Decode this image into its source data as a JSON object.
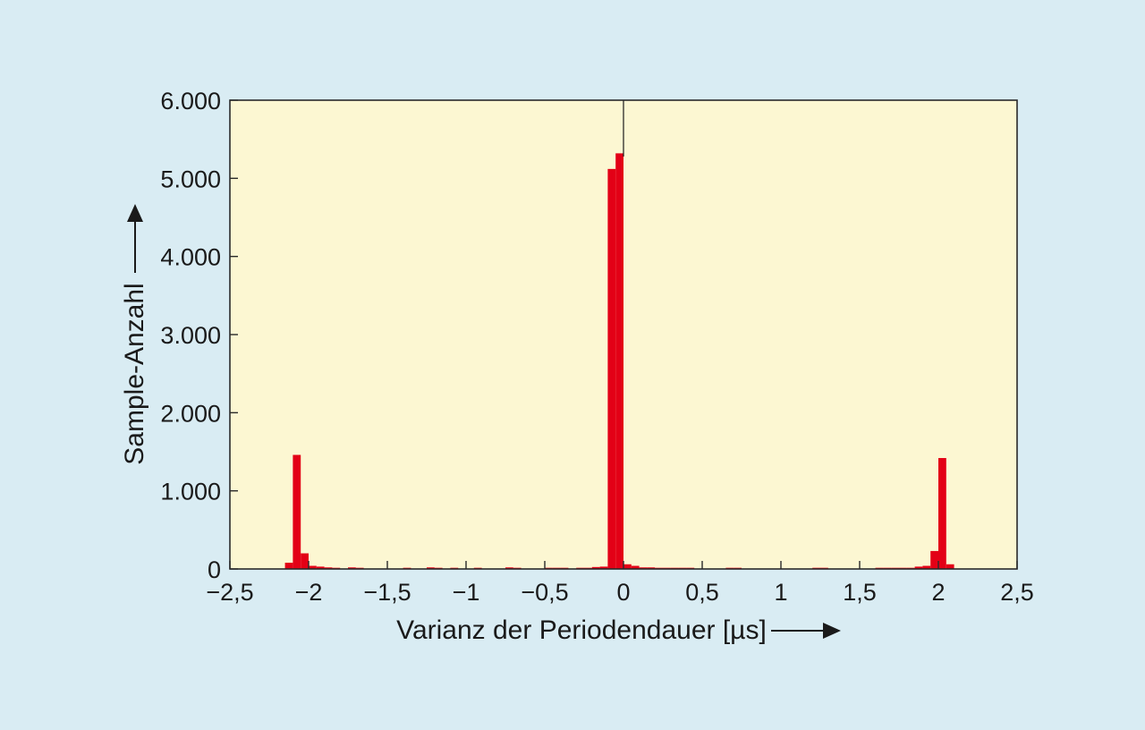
{
  "chart_data": {
    "type": "bar",
    "title": "",
    "xlabel": "Varianz der Periodendauer [µs]",
    "ylabel": "Sample-Anzahl",
    "xlim": [
      -2.5,
      2.5
    ],
    "ylim": [
      0,
      6000
    ],
    "grid": false,
    "x_ticks": [
      {
        "value": -2.5,
        "label": "−2,5"
      },
      {
        "value": -2,
        "label": "−2"
      },
      {
        "value": -1.5,
        "label": "−1,5"
      },
      {
        "value": -1,
        "label": "−1"
      },
      {
        "value": -0.5,
        "label": "−0,5"
      },
      {
        "value": 0,
        "label": "0"
      },
      {
        "value": 0.5,
        "label": "0,5"
      },
      {
        "value": 1,
        "label": "1"
      },
      {
        "value": 1.5,
        "label": "1,5"
      },
      {
        "value": 2,
        "label": "2"
      },
      {
        "value": 2.5,
        "label": "2,5"
      }
    ],
    "y_ticks": [
      {
        "value": 0,
        "label": "0"
      },
      {
        "value": 1000,
        "label": "1.000"
      },
      {
        "value": 2000,
        "label": "2.000"
      },
      {
        "value": 3000,
        "label": "3.000"
      },
      {
        "value": 4000,
        "label": "4.000"
      },
      {
        "value": 5000,
        "label": "5.000"
      },
      {
        "value": 6000,
        "label": "6.000"
      }
    ],
    "bin_width": 0.05,
    "series": [
      {
        "color": "#e30016",
        "x": [
          -2.125,
          -2.075,
          -2.025,
          -1.975,
          -1.925,
          -1.875,
          -1.825,
          -1.725,
          -1.675,
          -1.375,
          -1.225,
          -1.175,
          -1.075,
          -0.925,
          -0.725,
          -0.675,
          -0.475,
          -0.425,
          -0.375,
          -0.275,
          -0.225,
          -0.175,
          -0.125,
          -0.075,
          -0.025,
          0.025,
          0.075,
          0.125,
          0.175,
          0.225,
          0.275,
          0.325,
          0.375,
          0.425,
          0.675,
          0.725,
          1.225,
          1.275,
          1.625,
          1.675,
          1.725,
          1.775,
          1.825,
          1.875,
          1.925,
          1.975,
          2.025,
          2.075
        ],
        "values": [
          80,
          1460,
          200,
          40,
          30,
          20,
          15,
          20,
          15,
          15,
          20,
          15,
          15,
          15,
          20,
          15,
          15,
          15,
          15,
          15,
          15,
          25,
          30,
          5120,
          5320,
          60,
          40,
          20,
          20,
          15,
          15,
          15,
          15,
          15,
          15,
          15,
          15,
          15,
          15,
          15,
          15,
          15,
          15,
          30,
          40,
          230,
          1420,
          60
        ]
      }
    ]
  }
}
